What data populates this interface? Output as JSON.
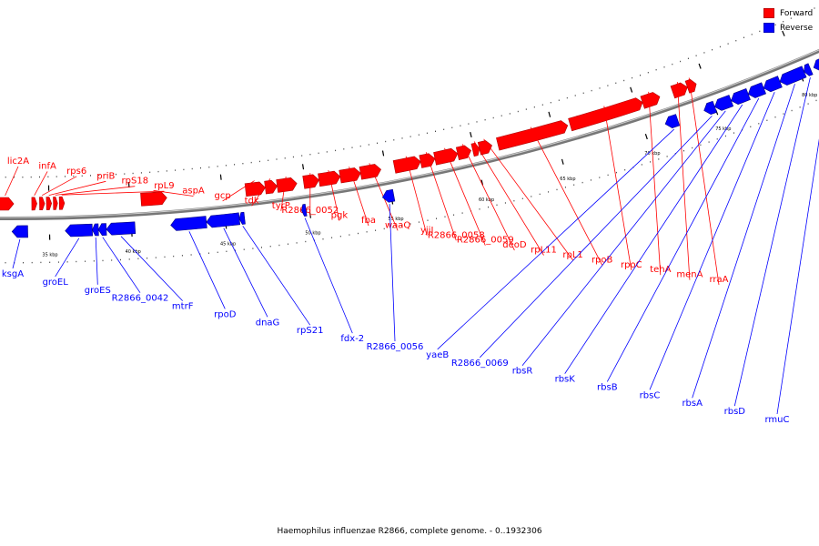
{
  "colors": {
    "forward": "#ff0000",
    "reverse": "#0000ff",
    "backbone": "#888888"
  },
  "legend": [
    {
      "label": "Forward",
      "color": "#ff0000"
    },
    {
      "label": "Reverse",
      "color": "#0000ff"
    }
  ],
  "caption": "Haemophilus influenzae R2866, complete genome. - 0..1932306",
  "kbp_marks": [
    {
      "label": "35 kbp",
      "t": 0.061
    },
    {
      "label": "40 kbp",
      "t": 0.155
    },
    {
      "label": "45 kbp",
      "t": 0.263
    },
    {
      "label": "50 kbp",
      "t": 0.36
    },
    {
      "label": "55 kbp",
      "t": 0.455
    },
    {
      "label": "60 kbp",
      "t": 0.56
    },
    {
      "label": "65 kbp",
      "t": 0.655
    },
    {
      "label": "70 kbp",
      "t": 0.755
    },
    {
      "label": "75 kbp",
      "t": 0.84
    },
    {
      "label": "80 kbp",
      "t": 0.945
    }
  ],
  "forward_genes": [
    {
      "label": "lic2A",
      "t0": 0.0,
      "t1": 0.02
    },
    {
      "label": "infA",
      "t0": 0.041,
      "t1": 0.047
    },
    {
      "label": "rps6",
      "t0": 0.05,
      "t1": 0.056
    },
    {
      "label": "priB",
      "t0": 0.058,
      "t1": 0.064
    },
    {
      "label": "rpS18",
      "t0": 0.066,
      "t1": 0.071
    },
    {
      "label": "rpL9",
      "t0": 0.073,
      "t1": 0.079
    },
    {
      "label": "aspA",
      "t0": 0.168,
      "t1": 0.198
    },
    {
      "label": "gcp",
      "t0": 0.29,
      "t1": 0.313
    },
    {
      "label": "tdk",
      "t0": 0.313,
      "t1": 0.327
    },
    {
      "label": "tyrP",
      "t0": 0.327,
      "t1": 0.35
    },
    {
      "label": "R2866_0052",
      "t0": 0.358,
      "t1": 0.376
    },
    {
      "label": "pgk",
      "t0": 0.376,
      "t1": 0.401
    },
    {
      "label": "fba",
      "t0": 0.401,
      "t1": 0.425
    },
    {
      "label": "waaQ",
      "t0": 0.425,
      "t1": 0.449
    },
    {
      "label": "yjjI",
      "t0": 0.465,
      "t1": 0.496
    },
    {
      "label": "R2866_0058",
      "t0": 0.496,
      "t1": 0.513
    },
    {
      "label": "R2866_0059",
      "t0": 0.513,
      "t1": 0.54
    },
    {
      "label": "deoD",
      "t0": 0.54,
      "t1": 0.556
    },
    {
      "label": "rpL11",
      "t0": 0.558,
      "t1": 0.566
    },
    {
      "label": "rpL1",
      "t0": 0.566,
      "t1": 0.581
    },
    {
      "label": "rpoB",
      "t0": 0.588,
      "t1": 0.672
    },
    {
      "label": "rpoC",
      "t0": 0.675,
      "t1": 0.763
    },
    {
      "label": "tehA",
      "t0": 0.763,
      "t1": 0.784
    },
    {
      "label": "menA",
      "t0": 0.8,
      "t1": 0.818
    },
    {
      "label": "rraA",
      "t0": 0.818,
      "t1": 0.829
    }
  ],
  "reverse_genes": [
    {
      "label": "ksgA",
      "t0": 0.018,
      "t1": 0.036
    },
    {
      "label": "groEL",
      "t0": 0.079,
      "t1": 0.11
    },
    {
      "label": "groES",
      "t0": 0.11,
      "t1": 0.117
    },
    {
      "label": "R2866_0042",
      "t0": 0.117,
      "t1": 0.126
    },
    {
      "label": "mtrF",
      "t0": 0.126,
      "t1": 0.159
    },
    {
      "label": "rpoD",
      "t0": 0.2,
      "t1": 0.241
    },
    {
      "label": "dnaG",
      "t0": 0.241,
      "t1": 0.279
    },
    {
      "label": "rpS21",
      "t0": 0.279,
      "t1": 0.285
    },
    {
      "label": "fdx-2",
      "t0": 0.351,
      "t1": 0.356
    },
    {
      "label": "R2866_0056",
      "t0": 0.445,
      "t1": 0.458
    },
    {
      "label": "yaeB",
      "t0": 0.78,
      "t1": 0.795
    },
    {
      "label": "R2866_0069",
      "t0": 0.827,
      "t1": 0.84
    },
    {
      "label": "rbsR",
      "t0": 0.84,
      "t1": 0.86
    },
    {
      "label": "rbsK",
      "t0": 0.86,
      "t1": 0.881
    },
    {
      "label": "rbsB",
      "t0": 0.881,
      "t1": 0.9
    },
    {
      "label": "rbsC",
      "t0": 0.9,
      "t1": 0.92
    },
    {
      "label": "rbsA",
      "t0": 0.92,
      "t1": 0.95
    },
    {
      "label": "rbsD",
      "t0": 0.95,
      "t1": 0.958
    },
    {
      "label": "rmuC",
      "t0": 0.962,
      "t1": 0.995
    }
  ]
}
